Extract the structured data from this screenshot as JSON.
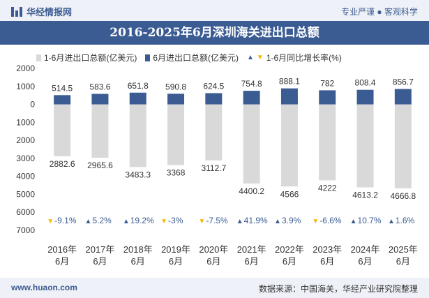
{
  "header": {
    "brand": "华经情报网",
    "tagline": "专业严谨 ● 客观科学"
  },
  "footer": {
    "website": "www.huaon.com",
    "source": "数据来源：中国海关，华经产业研究院整理"
  },
  "chart_data": {
    "type": "bar",
    "title": "2016-2025年6月深圳海关进出口总额",
    "xlabel": "",
    "ylabel": "",
    "ylim": [
      -7000,
      2000
    ],
    "y_tick_values": [
      2000,
      1000,
      0,
      -1000,
      -2000,
      -3000,
      -4000,
      -5000,
      -6000,
      -7000
    ],
    "y_tick_labels": [
      "2000",
      "1000",
      "0",
      "1000",
      "2000",
      "3000",
      "4000",
      "5000",
      "6000",
      "7000"
    ],
    "categories": [
      "2016年6月",
      "2017年6月",
      "2018年6月",
      "2019年6月",
      "2020年6月",
      "2021年6月",
      "2022年6月",
      "2023年6月",
      "2024年6月",
      "2025年6月"
    ],
    "series": [
      {
        "name": "1-6月进出口总额(亿美元)",
        "color": "#d9d9d9",
        "direction": "down",
        "values": [
          2882.6,
          2965.6,
          3483.3,
          3368,
          3112.7,
          4400.2,
          4566,
          4222,
          4613.2,
          4666.8
        ],
        "labels": [
          "2882.6",
          "2965.6",
          "3483.3",
          "3368",
          "3112.7",
          "4400.2",
          "4566",
          "4222",
          "4613.2",
          "4666.8"
        ]
      },
      {
        "name": "6月进出口总额(亿美元)",
        "color": "#3b5c93",
        "direction": "up",
        "values": [
          514.5,
          583.6,
          651.8,
          590.8,
          624.5,
          754.8,
          888.1,
          782,
          808.4,
          856.7
        ],
        "labels": [
          "514.5",
          "583.6",
          "651.8",
          "590.8",
          "624.5",
          "754.8",
          "888.1",
          "782",
          "808.4",
          "856.7"
        ]
      },
      {
        "name": "1-6月同比增长率(%)",
        "values": [
          -9.1,
          5.2,
          19.2,
          -3,
          -7.5,
          41.9,
          3.9,
          -6.6,
          10.7,
          1.6
        ],
        "labels": [
          "-9.1%",
          "5.2%",
          "19.2%",
          "-3%",
          "-7.5%",
          "41.9%",
          "3.9%",
          "-6.6%",
          "10.7%",
          "1.6%"
        ],
        "up_color": "#3b5c93",
        "down_color": "#f5b800"
      }
    ],
    "legend_position": "top"
  }
}
